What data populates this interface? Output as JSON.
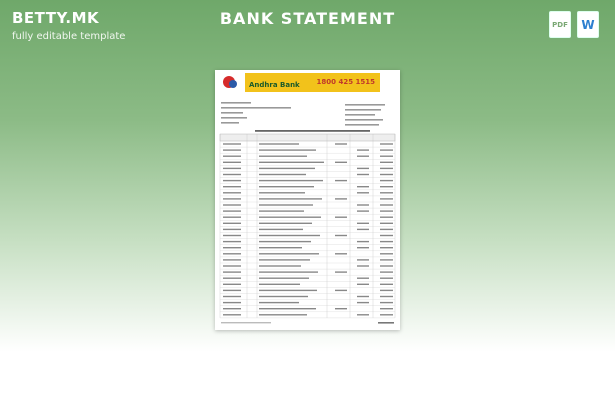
{
  "header": {
    "brand": "BETTY.MK",
    "tagline": "fully editable template",
    "title": "BANK STATEMENT"
  },
  "icons": {
    "pdf": "PDF",
    "word": "W"
  },
  "document": {
    "bank_name": "Andhra Bank",
    "phone": "1800 425 1515"
  }
}
